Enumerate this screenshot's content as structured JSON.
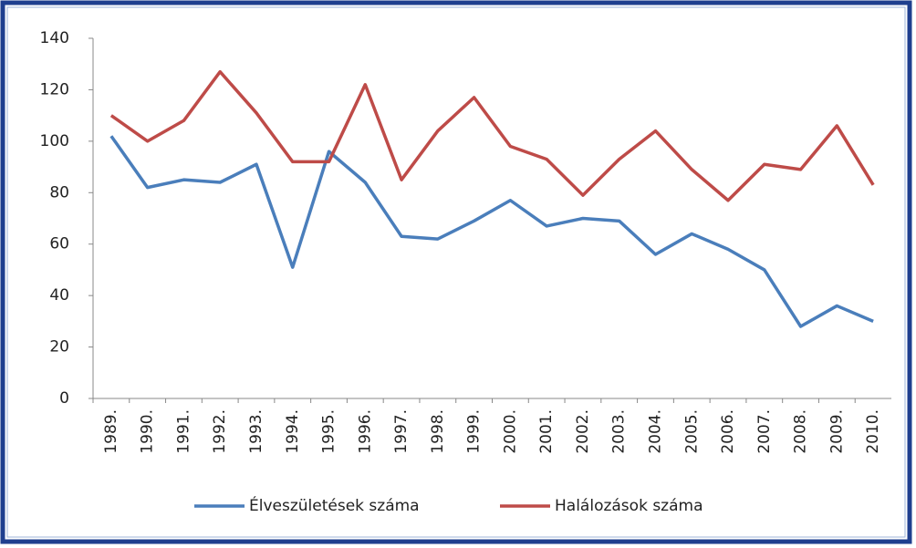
{
  "chart_data": {
    "type": "line",
    "categories": [
      "1989.",
      "1990.",
      "1991.",
      "1992.",
      "1993.",
      "1994.",
      "1995.",
      "1996.",
      "1997.",
      "1998.",
      "1999.",
      "2000.",
      "2001.",
      "2002.",
      "2003.",
      "2004.",
      "2005.",
      "2006.",
      "2007.",
      "2008.",
      "2009.",
      "2010."
    ],
    "series": [
      {
        "name": "Élveszületések száma",
        "color": "#4a7ebb",
        "values": [
          102,
          82,
          85,
          84,
          91,
          51,
          96,
          84,
          63,
          62,
          69,
          77,
          67,
          70,
          69,
          56,
          64,
          58,
          50,
          28,
          36,
          30
        ]
      },
      {
        "name": "Halálozások száma",
        "color": "#be4b48",
        "values": [
          110,
          100,
          108,
          127,
          111,
          92,
          92,
          122,
          85,
          104,
          117,
          98,
          93,
          79,
          93,
          104,
          89,
          77,
          91,
          89,
          106,
          83
        ]
      }
    ],
    "ylim": [
      0,
      140
    ],
    "yticks": [
      0,
      20,
      40,
      60,
      80,
      100,
      120,
      140
    ]
  }
}
